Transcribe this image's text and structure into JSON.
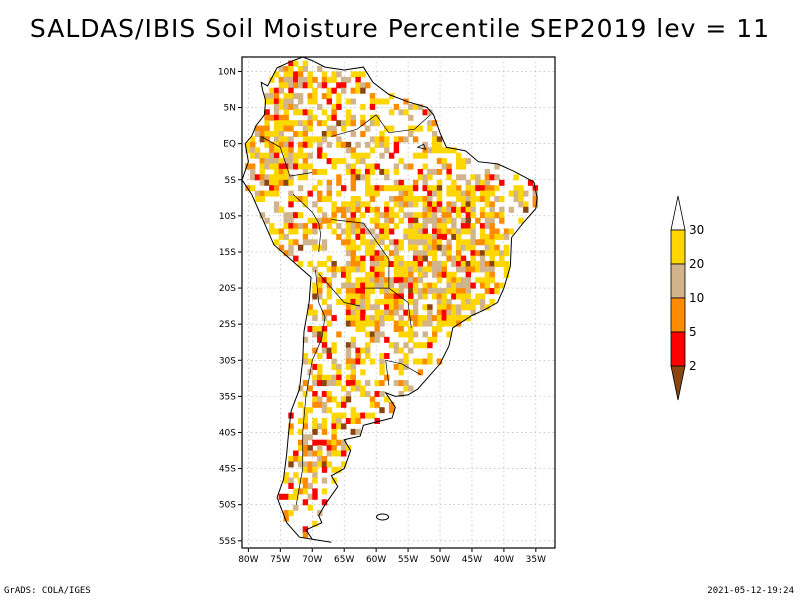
{
  "title": "SALDAS/IBIS Soil Moisture Percentile SEP2019 lev = 11",
  "footer": {
    "left": "GrADS: COLA/IGES",
    "right": "2021-05-12-19:24"
  },
  "chart_data": {
    "type": "heatmap",
    "title": "SALDAS/IBIS Soil Moisture Percentile SEP2019 lev = 11",
    "lon_ticks": [
      "80W",
      "75W",
      "70W",
      "65W",
      "60W",
      "55W",
      "50W",
      "45W",
      "40W",
      "35W"
    ],
    "lat_ticks": [
      "10N",
      "5N",
      "EQ",
      "5S",
      "10S",
      "15S",
      "20S",
      "25S",
      "30S",
      "35S",
      "40S",
      "45S",
      "50S",
      "55S"
    ],
    "lon_range": [
      -81,
      -32
    ],
    "lat_range": [
      -56,
      12
    ],
    "grid": true,
    "legend": {
      "placement": "right",
      "levels": [
        "2",
        "5",
        "10",
        "20",
        "30"
      ],
      "colors": [
        "#8B4513",
        "#FF0000",
        "#FF8C00",
        "#D2B48C",
        "#FFD700",
        "#FFFFFF"
      ]
    },
    "categories": [
      {
        "label": "<2",
        "color": "#8B4513"
      },
      {
        "label": "2-5",
        "color": "#FF0000"
      },
      {
        "label": "5-10",
        "color": "#FF8C00"
      },
      {
        "label": "10-20",
        "color": "#D2B48C"
      },
      {
        "label": "20-30",
        "color": "#FFD700"
      },
      {
        "label": ">30",
        "color": "#FFFFFF"
      }
    ]
  }
}
